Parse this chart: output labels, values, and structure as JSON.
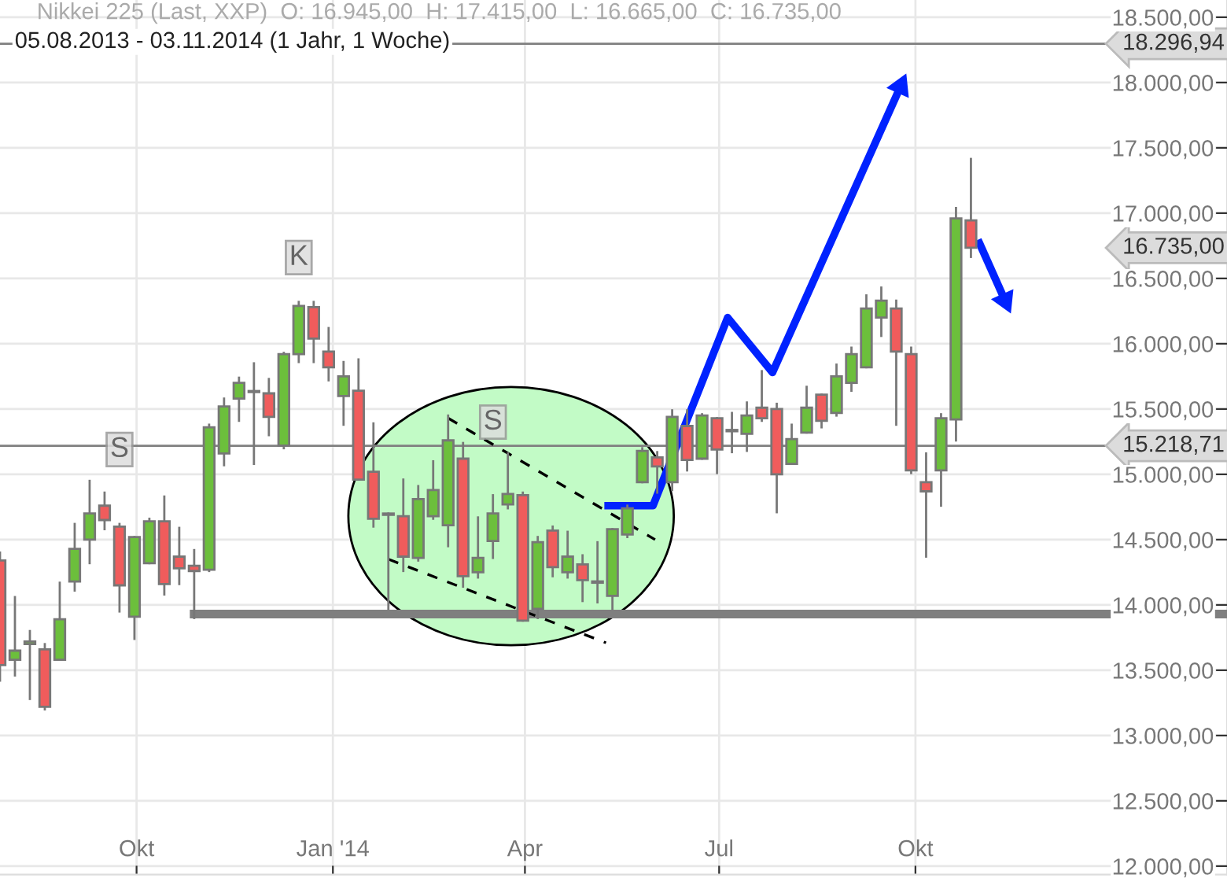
{
  "chart_data": {
    "type": "candlestick",
    "title": "Nikkei 225 (Last, XXP)  O: 16.945,00  H: 17.415,00  L: 16.665,00  C: 16.735,00",
    "subtitle": "05.08.2013 - 03.11.2014 (1 Jahr, 1 Woche)",
    "x": [
      "2013-07-29",
      "2013-08-05",
      "2013-08-12",
      "2013-08-19",
      "2013-08-26",
      "2013-09-02",
      "2013-09-09",
      "2013-09-16",
      "2013-09-23",
      "2013-09-30",
      "2013-10-07",
      "2013-10-14",
      "2013-10-21",
      "2013-10-28",
      "2013-11-04",
      "2013-11-11",
      "2013-11-18",
      "2013-11-25",
      "2013-12-02",
      "2013-12-09",
      "2013-12-16",
      "2013-12-23",
      "2013-12-30",
      "2014-01-06",
      "2014-01-13",
      "2014-01-20",
      "2014-01-27",
      "2014-02-03",
      "2014-02-10",
      "2014-02-17",
      "2014-02-24",
      "2014-03-03",
      "2014-03-10",
      "2014-03-17",
      "2014-03-24",
      "2014-03-31",
      "2014-04-07",
      "2014-04-14",
      "2014-04-21",
      "2014-04-28",
      "2014-05-05",
      "2014-05-12",
      "2014-05-19",
      "2014-05-26",
      "2014-06-02",
      "2014-06-09",
      "2014-06-16",
      "2014-06-23",
      "2014-06-30",
      "2014-07-07",
      "2014-07-14",
      "2014-07-21",
      "2014-07-28",
      "2014-08-04",
      "2014-08-11",
      "2014-08-18",
      "2014-08-25",
      "2014-09-01",
      "2014-09-08",
      "2014-09-15",
      "2014-09-22",
      "2014-09-29",
      "2014-10-06",
      "2014-10-13",
      "2014-10-20",
      "2014-10-27"
    ],
    "ohlc": [
      [
        14340,
        14400,
        13420,
        13540
      ],
      [
        13580,
        14060,
        13460,
        13650
      ],
      [
        13700,
        13800,
        13280,
        13720
      ],
      [
        13660,
        13700,
        13200,
        13220
      ],
      [
        13580,
        14170,
        13580,
        13890
      ],
      [
        14180,
        14620,
        14110,
        14430
      ],
      [
        14500,
        14950,
        14320,
        14700
      ],
      [
        14760,
        14860,
        14580,
        14650
      ],
      [
        14600,
        14620,
        13950,
        14150
      ],
      [
        13910,
        14520,
        13740,
        14520
      ],
      [
        14320,
        14660,
        14320,
        14640
      ],
      [
        14640,
        14830,
        14080,
        14160
      ],
      [
        14370,
        14590,
        14160,
        14280
      ],
      [
        14300,
        14420,
        13900,
        14260
      ],
      [
        14270,
        15380,
        14260,
        15360
      ],
      [
        15160,
        15580,
        15070,
        15520
      ],
      [
        15580,
        15740,
        15410,
        15700
      ],
      [
        15630,
        15850,
        15080,
        15630
      ],
      [
        15620,
        15730,
        15300,
        15440
      ],
      [
        15220,
        15930,
        15200,
        15920
      ],
      [
        15920,
        16320,
        15860,
        16290
      ],
      [
        16280,
        16320,
        15860,
        16040
      ],
      [
        15940,
        16120,
        15720,
        15820
      ],
      [
        15600,
        15860,
        15380,
        15750
      ],
      [
        15640,
        15880,
        14960,
        14960
      ],
      [
        15020,
        15390,
        14600,
        14660
      ],
      [
        14700,
        14700,
        13970,
        14690
      ],
      [
        14680,
        14960,
        14260,
        14370
      ],
      [
        14360,
        14910,
        14340,
        14810
      ],
      [
        14680,
        15100,
        14660,
        14880
      ],
      [
        14610,
        15450,
        14450,
        15260
      ],
      [
        15120,
        15240,
        14140,
        14220
      ],
      [
        14250,
        14670,
        14210,
        14360
      ],
      [
        14490,
        14840,
        14360,
        14700
      ],
      [
        14770,
        15160,
        14740,
        14850
      ],
      [
        14840,
        14860,
        13880,
        13880
      ],
      [
        13970,
        14520,
        13900,
        14480
      ],
      [
        14570,
        14600,
        14220,
        14290
      ],
      [
        14250,
        14560,
        14210,
        14370
      ],
      [
        14310,
        14380,
        14030,
        14190
      ],
      [
        14180,
        14480,
        14020,
        14170
      ],
      [
        14070,
        14580,
        13970,
        14580
      ],
      [
        14540,
        14760,
        14520,
        14740
      ],
      [
        14940,
        15200,
        14940,
        15180
      ],
      [
        15130,
        15170,
        14860,
        15060
      ],
      [
        14940,
        15490,
        14880,
        15440
      ],
      [
        15370,
        15490,
        15030,
        15110
      ],
      [
        15120,
        15460,
        15120,
        15450
      ],
      [
        15430,
        15430,
        15010,
        15190
      ],
      [
        15340,
        15470,
        15170,
        15330
      ],
      [
        15310,
        15550,
        15180,
        15450
      ],
      [
        15510,
        15790,
        15410,
        15430
      ],
      [
        15500,
        15540,
        14710,
        15000
      ],
      [
        15080,
        15380,
        15080,
        15270
      ],
      [
        15320,
        15670,
        15320,
        15510
      ],
      [
        15610,
        15610,
        15360,
        15410
      ],
      [
        15470,
        15840,
        15450,
        15750
      ],
      [
        15700,
        15970,
        15640,
        15920
      ],
      [
        15820,
        16370,
        15820,
        16270
      ],
      [
        16200,
        16430,
        16060,
        16330
      ],
      [
        16270,
        16330,
        15380,
        15940
      ],
      [
        15920,
        15970,
        15010,
        15030
      ],
      [
        14940,
        15160,
        14370,
        14870
      ],
      [
        15030,
        15460,
        14760,
        15430
      ],
      [
        15420,
        17040,
        15260,
        16960
      ],
      [
        16945,
        17415,
        16665,
        16735
      ]
    ],
    "series": [
      {
        "type": "line",
        "color": "#7f7f7f",
        "x": [
          "2013-10-28",
          "2015-02-24"
        ],
        "values": [
          13930,
          13930
        ]
      },
      {
        "type": "line",
        "color": "#000000",
        "line_style": "dashed",
        "x": [
          "2014-02-24",
          "2014-06-01"
        ],
        "values": [
          15430,
          14500
        ]
      },
      {
        "type": "line",
        "color": "#000000",
        "line_style": "dashed",
        "x": [
          "2014-01-27",
          "2014-05-09"
        ],
        "values": [
          14350,
          13710
        ]
      },
      {
        "type": "line",
        "color": "#0022ff",
        "x": [
          "2014-05-10",
          "2014-05-31",
          "2014-07-05",
          "2014-07-26",
          "2014-09-24"
        ],
        "values": [
          14760,
          14760,
          16200,
          15780,
          17970
        ]
      },
      {
        "type": "line",
        "color": "#0022ff",
        "x": [
          "2014-10-31",
          "2014-11-12"
        ],
        "values": [
          16770,
          16330
        ]
      }
    ],
    "ref_lines": [
      {
        "axis": "y",
        "value": 18296.94,
        "label": "18.296,94",
        "color": "#808080"
      },
      {
        "axis": "y",
        "value": 15218.71,
        "label": "15.218,71",
        "color": "#808080"
      }
    ],
    "annotations": [
      "16.735,00",
      {
        "text": "S",
        "x": "2013-09-23",
        "y": 15190
      },
      {
        "text": "K",
        "x": "2013-12-16",
        "y": 16660
      },
      {
        "text": "S",
        "x": "2014-03-17",
        "y": 15400
      }
    ],
    "xlim": [
      "2013-07-29",
      "2015-02-24"
    ],
    "ylim": [
      11936,
      18632
    ],
    "xticks": [
      {
        "value": "2013-10-01",
        "label": "Okt"
      },
      {
        "value": "2014-01-01",
        "label": "Jan '14"
      },
      {
        "value": "2014-04-01",
        "label": "Apr"
      },
      {
        "value": "2014-07-01",
        "label": "Jul"
      },
      {
        "value": "2014-10-01",
        "label": "Okt"
      }
    ],
    "yticks": [
      {
        "value": 12000,
        "label": "12.000,00"
      },
      {
        "value": 12500,
        "label": "12.500,00"
      },
      {
        "value": 13000,
        "label": "13.000,00"
      },
      {
        "value": 13500,
        "label": "13.500,00"
      },
      {
        "value": 14000,
        "label": "14.000,00"
      },
      {
        "value": 14500,
        "label": "14.500,00"
      },
      {
        "value": 15000,
        "label": "15.000,00"
      },
      {
        "value": 15500,
        "label": "15.500,00"
      },
      {
        "value": 16000,
        "label": "16.000,00"
      },
      {
        "value": 16500,
        "label": "16.500,00"
      },
      {
        "value": 17000,
        "label": "17.000,00"
      },
      {
        "value": 17500,
        "label": "17.500,00"
      },
      {
        "value": 18000,
        "label": "18.000,00"
      },
      {
        "value": 18500,
        "label": "18.500,00"
      }
    ],
    "grid": true
  }
}
